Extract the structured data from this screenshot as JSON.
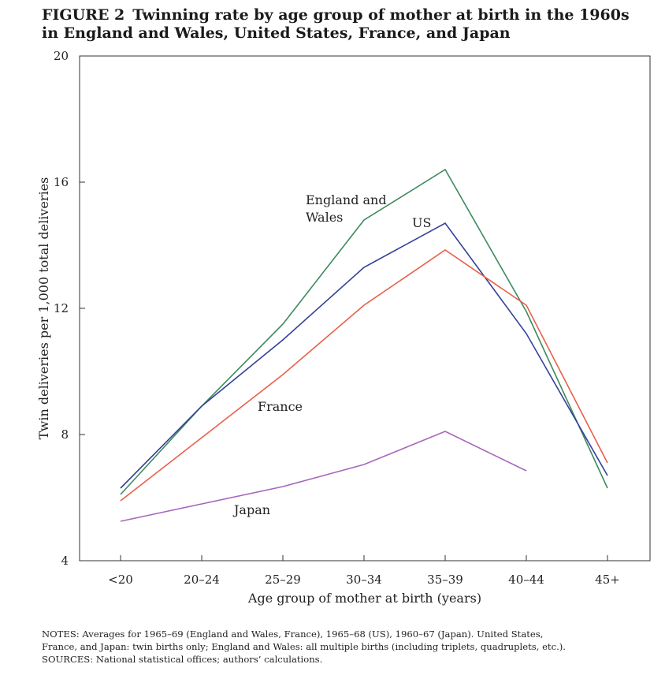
{
  "figure": {
    "label": "FIGURE 2",
    "title_line1": "Twinning rate by age group of mother at birth in the 1960s",
    "title_line2": "in England and Wales, United States, France, and Japan"
  },
  "chart_data": {
    "type": "line",
    "xlabel": "Age group of mother at birth (years)",
    "ylabel": "Twin deliveries per 1,000 total deliveries",
    "categories": [
      "<20",
      "20–24",
      "25–29",
      "30–34",
      "35–39",
      "40–44",
      "45+"
    ],
    "ylim": [
      4,
      20
    ],
    "yticks": [
      4,
      8,
      12,
      16,
      20
    ],
    "grid": false,
    "series": [
      {
        "name": "England and Wales",
        "label_lines": [
          "England and",
          "Wales"
        ],
        "color": "#3e8a5e",
        "values": [
          6.1,
          8.9,
          11.5,
          14.8,
          16.4,
          11.9,
          6.3
        ]
      },
      {
        "name": "US",
        "label_lines": [
          "US"
        ],
        "color": "#34409a",
        "values": [
          6.3,
          8.9,
          11.0,
          13.3,
          14.7,
          11.2,
          6.7
        ]
      },
      {
        "name": "France",
        "label_lines": [
          "France"
        ],
        "color": "#e8604c",
        "values": [
          5.9,
          7.9,
          9.9,
          12.1,
          13.85,
          12.1,
          7.1
        ]
      },
      {
        "name": "Japan",
        "label_lines": [
          "Japan"
        ],
        "color": "#a766bd",
        "values": [
          5.25,
          5.8,
          6.35,
          7.05,
          8.1,
          6.85,
          null
        ]
      }
    ]
  },
  "notes": {
    "line1": "NOTES: Averages for 1965–69 (England and Wales, France), 1965–68 (US), 1960–67 (Japan). United States,",
    "line2": "France, and Japan: twin births only; England and Wales: all multiple births (including triplets, quadruplets, etc.).",
    "line3": "SOURCES: National statistical offices; authors’ calculations."
  }
}
